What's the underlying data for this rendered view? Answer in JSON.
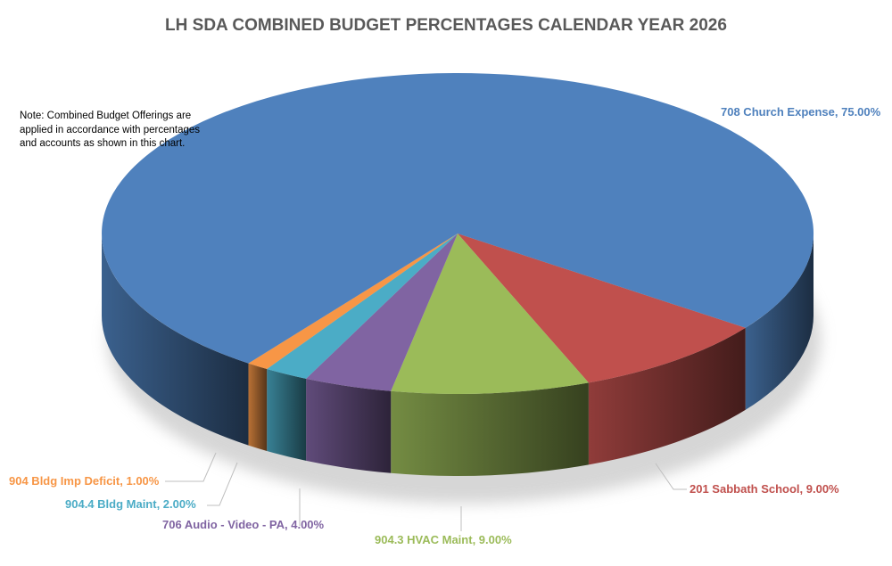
{
  "chart_data": {
    "type": "pie",
    "style": "3d",
    "title": "LH SDA COMBINED BUDGET PERCENTAGES CALENDAR YEAR 2026",
    "note": "Note:  Combined Budget Offerings are applied in accordance with percentages and accounts as shown in this chart.",
    "slices": [
      {
        "label": "201 Sabbath School",
        "value": 9.0,
        "display": "201 Sabbath School, 9.00%",
        "color": "#C0504D"
      },
      {
        "label": "904.3 HVAC Maint",
        "value": 9.0,
        "display": "904.3 HVAC Maint, 9.00%",
        "color": "#9BBB59"
      },
      {
        "label": "706 Audio - Video - PA",
        "value": 4.0,
        "display": "706 Audio - Video - PA, 4.00%",
        "color": "#8064A2"
      },
      {
        "label": "904.4 Bldg Maint",
        "value": 2.0,
        "display": "904.4 Bldg Maint, 2.00%",
        "color": "#4BACC6"
      },
      {
        "label": "904 Bldg Imp Deficit",
        "value": 1.0,
        "display": "904 Bldg Imp Deficit, 1.00%",
        "color": "#F79646"
      },
      {
        "label": "708 Church Expense",
        "value": 75.0,
        "display": "708 Church Expense, 75.00%",
        "color": "#4F81BD"
      }
    ],
    "legend": "none (data labels)"
  }
}
